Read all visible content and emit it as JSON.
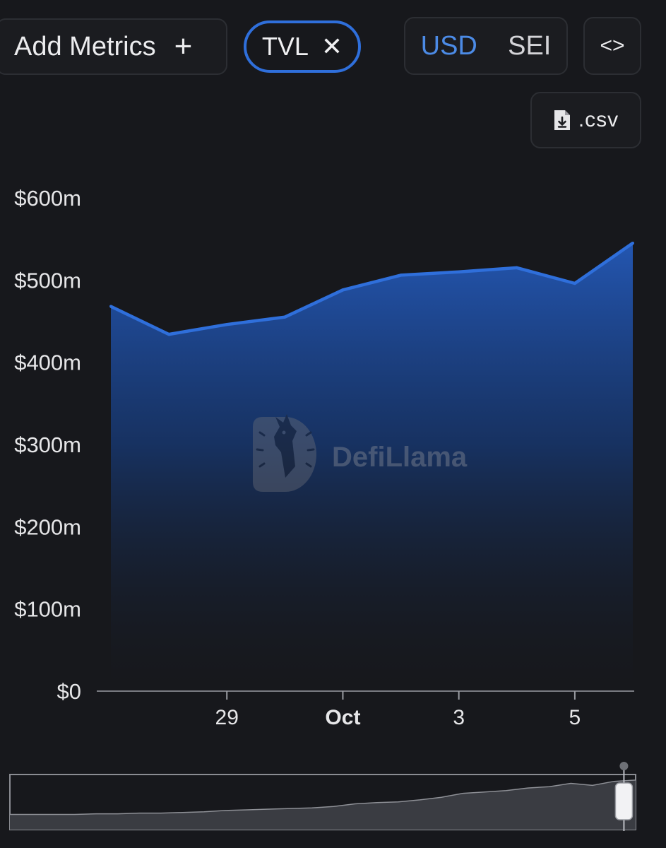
{
  "toolbar": {
    "add_metrics_label": "Add Metrics",
    "add_icon": "plus-icon",
    "chip_label": "TVL",
    "chip_close_icon": "close-icon",
    "currency_usd": "USD",
    "currency_sei": "SEI",
    "currency_selected": "USD",
    "embed_icon": "code-icon",
    "csv_label": ".csv",
    "csv_icon": "file-download-icon",
    "accent_color": "#2f6fdb"
  },
  "watermark": {
    "text": "DefiLlama"
  },
  "chart_data": {
    "type": "area",
    "title": "",
    "xlabel": "",
    "ylabel": "",
    "ylim": [
      0,
      600
    ],
    "y_ticks": [
      0,
      100,
      200,
      300,
      400,
      500,
      600
    ],
    "y_tick_labels": [
      "$0",
      "$100m",
      "$200m",
      "$300m",
      "$400m",
      "$500m",
      "$600m"
    ],
    "x_start": 27.25,
    "x_end": 6.75,
    "x_ticks": [
      {
        "day": 29,
        "label": "29"
      },
      {
        "day": 1,
        "label": "Oct"
      },
      {
        "day": 3,
        "label": "3"
      },
      {
        "day": 5,
        "label": "5"
      }
    ],
    "x": [
      "Sep 27",
      "Sep 28",
      "Sep 29",
      "Sep 30",
      "Oct 1",
      "Oct 2",
      "Oct 3",
      "Oct 4",
      "Oct 5",
      "Oct 6"
    ],
    "series": [
      {
        "values": [
          468,
          434,
          446,
          455,
          488,
          506,
          510,
          515,
          496,
          545
        ],
        "color": "#2f6fdb"
      }
    ],
    "grid": false,
    "legend": "none"
  },
  "brush": {
    "overview_values": [
      8,
      8,
      8,
      8,
      9,
      9,
      10,
      10,
      11,
      12,
      14,
      15,
      16,
      17,
      18,
      20,
      24,
      26,
      27,
      30,
      34,
      40,
      42,
      44,
      48,
      50,
      55,
      52,
      58,
      60
    ],
    "selection": [
      0.97,
      1.0
    ]
  }
}
